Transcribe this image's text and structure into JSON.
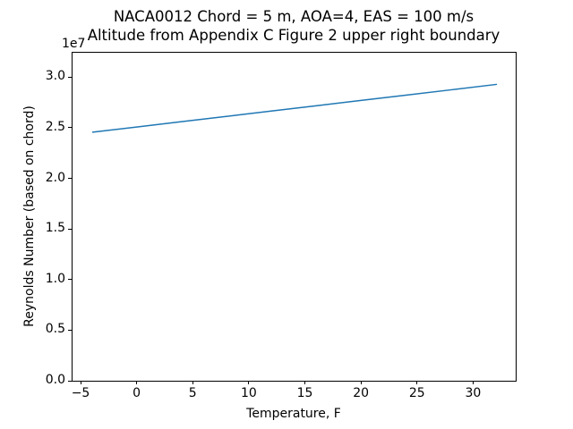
{
  "figure": {
    "title_line1": "NACA0012 Chord = 5 m, AOA=4, EAS = 100 m/s",
    "title_line2": "Altitude from Appendix C Figure 2 upper right boundary",
    "xlabel": "Temperature, F",
    "ylabel": "Reynolds Number (based on chord)",
    "offset_text": "1e7"
  },
  "chart_data": {
    "type": "line",
    "title": "NACA0012 Chord = 5 m, AOA=4, EAS = 100 m/s\nAltitude from Appendix C Figure 2 upper right boundary",
    "xlabel": "Temperature, F",
    "ylabel": "Reynolds Number (based on chord)",
    "y_offset_label": "1e7",
    "grid": false,
    "legend": false,
    "xlim": [
      -5.8,
      33.8
    ],
    "ylim": [
      0,
      32500000
    ],
    "xticks": [
      -5,
      0,
      5,
      10,
      15,
      20,
      25,
      30
    ],
    "xtick_labels": [
      "−5",
      "0",
      "5",
      "10",
      "15",
      "20",
      "25",
      "30"
    ],
    "yticks": [
      0,
      5000000,
      10000000,
      15000000,
      20000000,
      25000000,
      30000000
    ],
    "ytick_labels": [
      "0.0",
      "0.5",
      "1.0",
      "1.5",
      "2.0",
      "2.5",
      "3.0"
    ],
    "series": [
      {
        "name": "reynolds-number-vs-temperature",
        "color": "#1f77b4",
        "line_width": 1.5,
        "x": [
          -4,
          0,
          4,
          8,
          12,
          16,
          20,
          24,
          28,
          32
        ],
        "y": [
          24650000,
          25170000,
          25700000,
          26220000,
          26750000,
          27270000,
          27800000,
          28320000,
          28840000,
          29370000
        ]
      }
    ]
  },
  "colors": {
    "line": "#1f77b4",
    "text": "#000000",
    "spine": "#000000",
    "background": "#ffffff"
  }
}
